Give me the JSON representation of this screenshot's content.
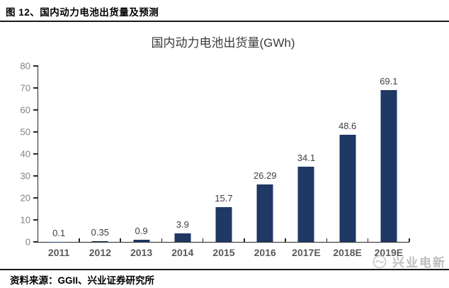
{
  "header": {
    "caption": "图 12、国内动力电池出货量及预测"
  },
  "chart_data": {
    "type": "bar",
    "title": "国内动力电池出货量(GWh)",
    "categories": [
      "2011",
      "2012",
      "2013",
      "2014",
      "2015",
      "2016",
      "2017E",
      "2018E",
      "2019E"
    ],
    "values": [
      0.1,
      0.35,
      0.9,
      3.9,
      15.7,
      26.29,
      34.1,
      48.6,
      69.1
    ],
    "value_labels": [
      "0.1",
      "0.35",
      "0.9",
      "3.9",
      "15.7",
      "26.29",
      "34.1",
      "48.6",
      "69.1"
    ],
    "xlabel": "",
    "ylabel": "",
    "ylim": [
      0,
      80
    ],
    "yticks": [
      0,
      10,
      20,
      30,
      40,
      50,
      60,
      70,
      80
    ],
    "grid": "off",
    "legend": "none",
    "bar_color": "#1F3864",
    "axis_color": "#262626",
    "ytick_label_color": "#808080",
    "xtick_label_color": "#595959",
    "value_label_color": "#404040"
  },
  "footer": {
    "source": "资料来源：GGII、兴业证券研究所"
  },
  "watermark": {
    "label": "兴业电新"
  }
}
